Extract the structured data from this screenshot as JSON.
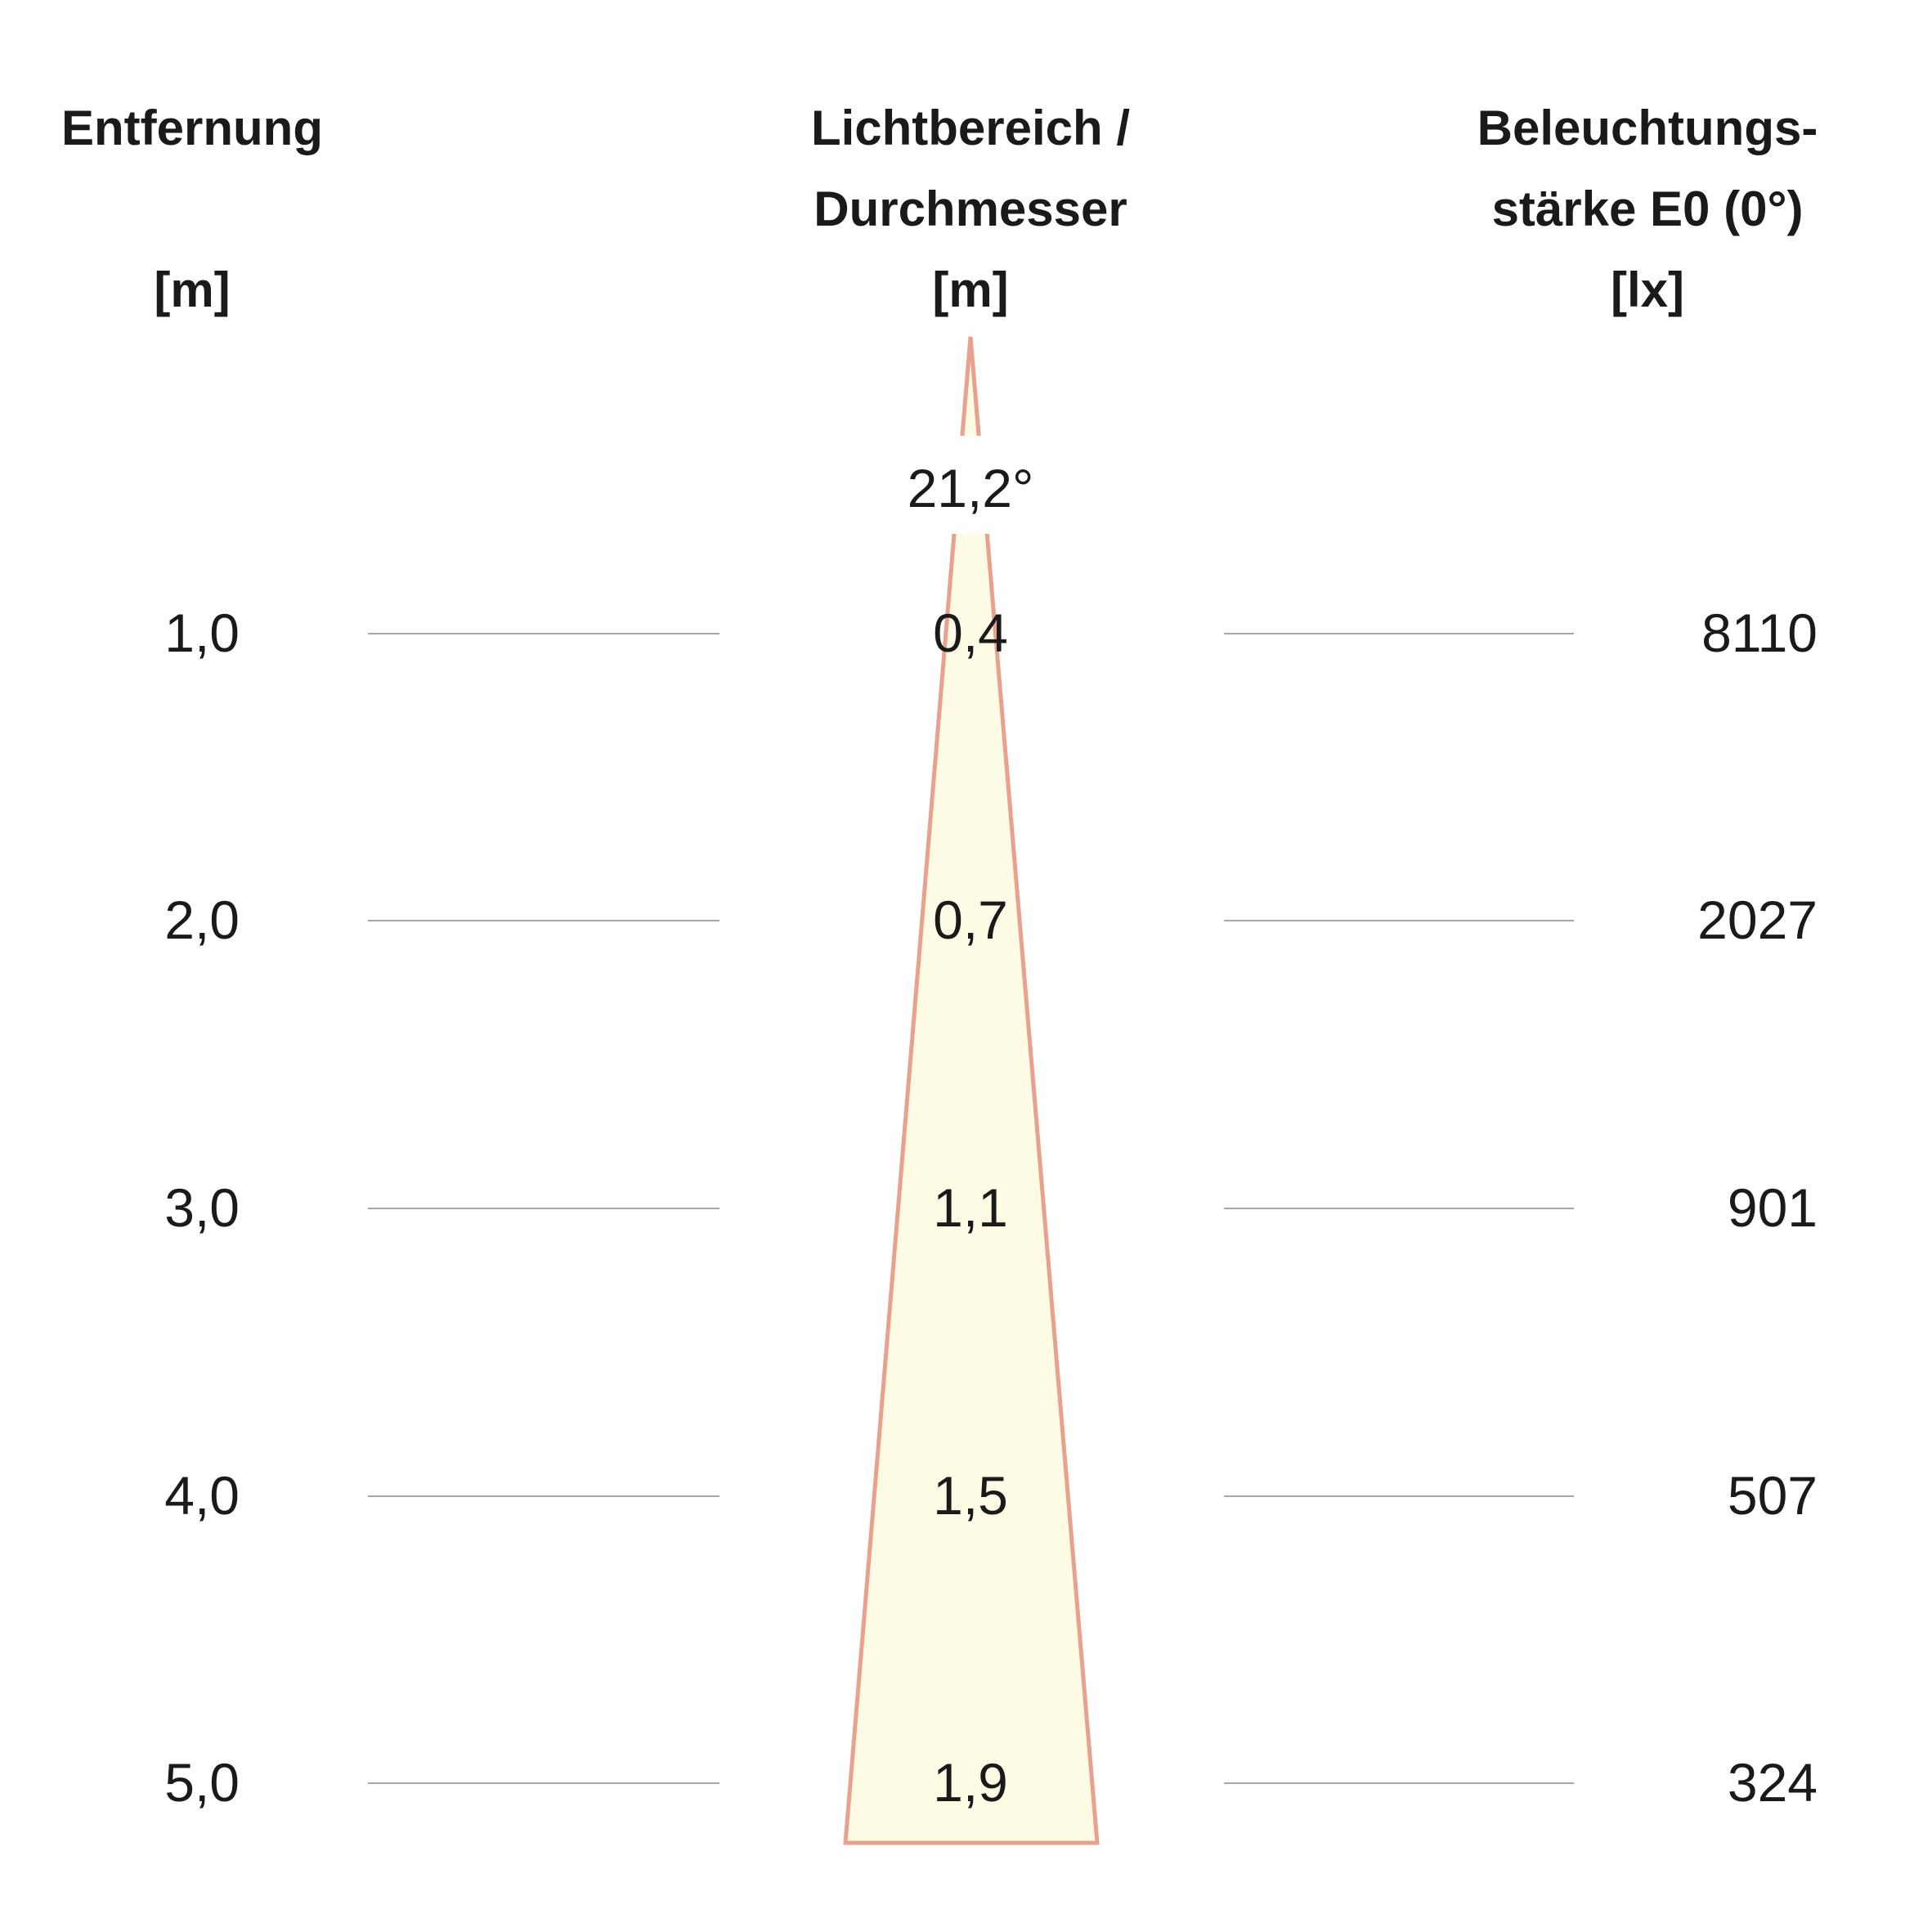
{
  "headers": {
    "distance": {
      "title": "Entfernung",
      "unit": "[m]"
    },
    "diameter": {
      "title_line1": "Lichtbereich /",
      "title_line2": "Durchmesser",
      "unit": "[m]"
    },
    "illuminance": {
      "title_line1": "Beleuchtungs-",
      "title_line2": "stärke E0 (0°)",
      "unit": "[lx]"
    }
  },
  "beam_angle": "21,2°",
  "rows": [
    {
      "distance": "1,0",
      "diameter": "0,4",
      "illuminance": "8110"
    },
    {
      "distance": "2,0",
      "diameter": "0,7",
      "illuminance": "2027"
    },
    {
      "distance": "3,0",
      "diameter": "1,1",
      "illuminance": "901"
    },
    {
      "distance": "4,0",
      "diameter": "1,5",
      "illuminance": "507"
    },
    {
      "distance": "5,0",
      "diameter": "1,9",
      "illuminance": "324"
    }
  ],
  "colors": {
    "beam_fill": "#fdfbe4",
    "beam_outline": "#e9a08c",
    "rule_line": "#8a8a8a",
    "text": "#1a1a1a"
  }
}
